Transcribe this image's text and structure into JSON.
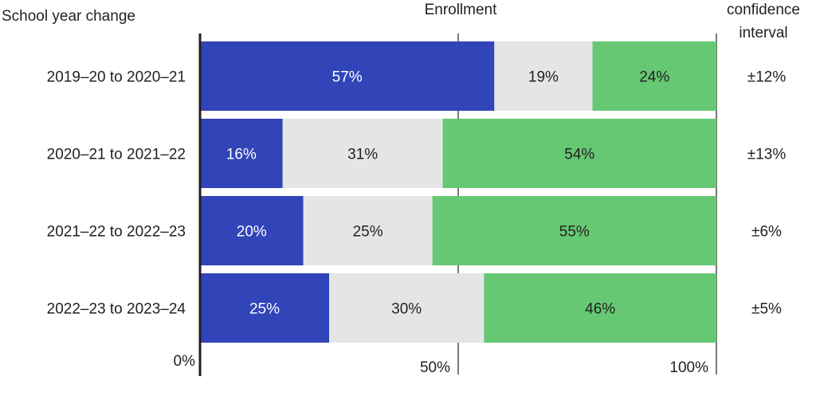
{
  "chart_data": {
    "type": "bar",
    "orientation": "horizontal",
    "stacked": true,
    "title": "",
    "category_header": "School year change",
    "xlabel": "Enrollment",
    "ci_header_line1": "confidence",
    "ci_header_line2": "interval",
    "categories": [
      "2019–20 to 2020–21",
      "2020–21 to 2021–22",
      "2021–22 to 2022–23",
      "2022–23 to 2023–24"
    ],
    "series": [
      {
        "color": "#3144b8",
        "label_color": "#ffffff",
        "values": [
          57,
          16,
          20,
          25
        ],
        "labels": [
          "57%",
          "16%",
          "20%",
          "25%"
        ]
      },
      {
        "color": "#e5e5e5",
        "label_color": "#231f20",
        "values": [
          19,
          31,
          25,
          30
        ],
        "labels": [
          "19%",
          "31%",
          "25%",
          "30%"
        ]
      },
      {
        "color": "#66c873",
        "label_color": "#231f20",
        "values": [
          24,
          54,
          55,
          46
        ],
        "labels": [
          "24%",
          "54%",
          "55%",
          "46%"
        ]
      }
    ],
    "confidence_intervals": [
      "±12%",
      "±13%",
      "±6%",
      "±5%"
    ],
    "xlim": [
      0,
      100
    ],
    "x_ticks": [
      0,
      50,
      100
    ],
    "x_tick_labels": [
      "0%",
      "50%",
      "100%"
    ],
    "grid": true
  }
}
